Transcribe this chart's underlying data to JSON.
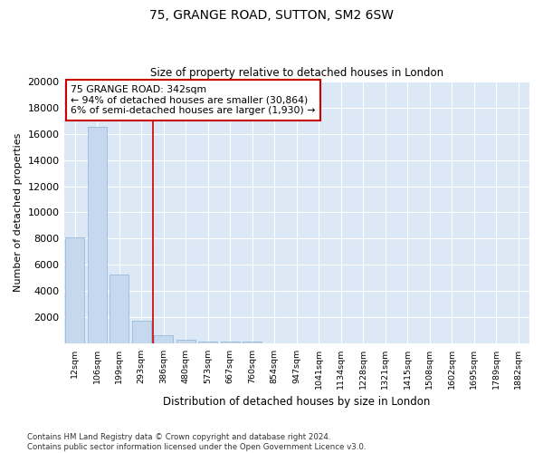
{
  "title": "75, GRANGE ROAD, SUTTON, SM2 6SW",
  "subtitle": "Size of property relative to detached houses in London",
  "xlabel": "Distribution of detached houses by size in London",
  "ylabel": "Number of detached properties",
  "bar_color": "#c5d8ee",
  "bar_edge_color": "#8ab4d8",
  "categories": [
    "12sqm",
    "106sqm",
    "199sqm",
    "293sqm",
    "386sqm",
    "480sqm",
    "573sqm",
    "667sqm",
    "760sqm",
    "854sqm",
    "947sqm",
    "1041sqm",
    "1134sqm",
    "1228sqm",
    "1321sqm",
    "1415sqm",
    "1508sqm",
    "1602sqm",
    "1695sqm",
    "1789sqm",
    "1882sqm"
  ],
  "values": [
    8100,
    16500,
    5300,
    1750,
    620,
    300,
    175,
    150,
    150,
    0,
    0,
    0,
    0,
    0,
    0,
    0,
    0,
    0,
    0,
    0,
    0
  ],
  "vline_x": 3.52,
  "vline_color": "#cc0000",
  "annotation_text": "75 GRANGE ROAD: 342sqm\n← 94% of detached houses are smaller (30,864)\n6% of semi-detached houses are larger (1,930) →",
  "annotation_box_color": "#cc0000",
  "ylim": [
    0,
    20000
  ],
  "yticks": [
    0,
    2000,
    4000,
    6000,
    8000,
    10000,
    12000,
    14000,
    16000,
    18000,
    20000
  ],
  "footnote": "Contains HM Land Registry data © Crown copyright and database right 2024.\nContains public sector information licensed under the Open Government Licence v3.0.",
  "fig_bg_color": "#ffffff",
  "plot_bg_color": "#dce8f5",
  "grid_color": "#ffffff"
}
